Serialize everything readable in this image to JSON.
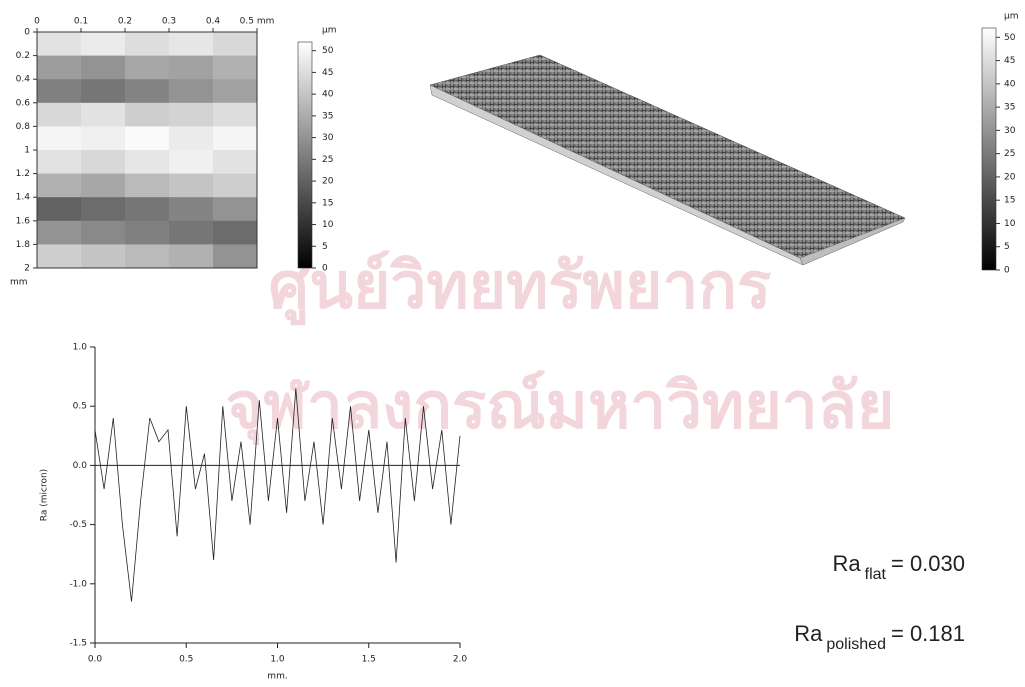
{
  "chart_data": [
    {
      "type": "heatmap",
      "xlim": [
        0,
        0.5
      ],
      "xticks": [
        0,
        0.1,
        0.2,
        0.3,
        0.4,
        {
          "value": 0.5,
          "label": "0.5 mm"
        }
      ],
      "ylim": [
        0,
        2
      ],
      "yticks": [
        0,
        0.2,
        0.4,
        0.6,
        0.8,
        1,
        1.2,
        1.4,
        1.6,
        1.8,
        2
      ],
      "ylabel": "mm",
      "values": [
        [
          46,
          48,
          45,
          47,
          44
        ],
        [
          32,
          30,
          34,
          33,
          36
        ],
        [
          26,
          24,
          27,
          30,
          33
        ],
        [
          44,
          46,
          42,
          43,
          45
        ],
        [
          50,
          49,
          51,
          48,
          50
        ],
        [
          46,
          44,
          47,
          49,
          46
        ],
        [
          36,
          34,
          38,
          40,
          42
        ],
        [
          20,
          22,
          24,
          27,
          30
        ],
        [
          30,
          28,
          26,
          24,
          22
        ],
        [
          42,
          40,
          38,
          36,
          30
        ]
      ],
      "zlim": [
        0,
        52
      ],
      "colorbar_label": "µm",
      "colorbar_ticks": [
        0,
        5,
        10,
        15,
        20,
        25,
        30,
        35,
        40,
        45,
        50
      ]
    },
    {
      "type": "surface3d",
      "zlim": [
        0,
        52
      ],
      "colorbar_label": "µm",
      "colorbar_ticks": [
        0,
        5,
        10,
        15,
        20,
        25,
        30,
        35,
        40,
        45,
        50
      ]
    },
    {
      "type": "line",
      "xlabel": "mm.",
      "ylabel": "Ra (micron)",
      "x": [
        0,
        0.05,
        0.1,
        0.15,
        0.2,
        0.25,
        0.3,
        0.35,
        0.4,
        0.45,
        0.5,
        0.55,
        0.6,
        0.65,
        0.7,
        0.75,
        0.8,
        0.85,
        0.9,
        0.95,
        1.0,
        1.05,
        1.1,
        1.15,
        1.2,
        1.25,
        1.3,
        1.35,
        1.4,
        1.45,
        1.5,
        1.55,
        1.6,
        1.65,
        1.7,
        1.75,
        1.8,
        1.85,
        1.9,
        1.95,
        2.0
      ],
      "values": [
        0.3,
        -0.2,
        0.4,
        -0.5,
        -1.15,
        -0.3,
        0.4,
        0.2,
        0.3,
        -0.6,
        0.5,
        -0.2,
        0.1,
        -0.8,
        0.5,
        -0.3,
        0.2,
        -0.5,
        0.55,
        -0.3,
        0.4,
        -0.4,
        0.65,
        -0.3,
        0.2,
        -0.5,
        0.4,
        -0.2,
        0.5,
        -0.3,
        0.3,
        -0.4,
        0.2,
        -0.82,
        0.4,
        -0.3,
        0.5,
        -0.2,
        0.3,
        -0.5,
        0.25
      ],
      "color": "#222222",
      "xlim": [
        0,
        2
      ],
      "xticks": [
        {
          "value": 0,
          "label": "0.0"
        },
        0.5,
        {
          "value": 1,
          "label": "1.0"
        },
        1.5,
        {
          "value": 2,
          "label": "2.0"
        }
      ],
      "ylim": [
        -1.5,
        1
      ],
      "yticks": [
        -1.5,
        {
          "value": -1,
          "label": "-1.0"
        },
        -0.5,
        {
          "value": 0,
          "label": "0.0"
        },
        0.5,
        {
          "value": 1,
          "label": "1.0"
        }
      ]
    }
  ],
  "annotations": [
    {
      "base": "Ra",
      "sub": "flat",
      "text": "= 0.030"
    },
    {
      "base": "Ra",
      "sub": "polished",
      "text": "= 0.181"
    }
  ],
  "watermark": [
    "ศูนย์วิทยทรัพยากร",
    "จุฬาลงกรณ์มหาวิทยาลัย"
  ]
}
